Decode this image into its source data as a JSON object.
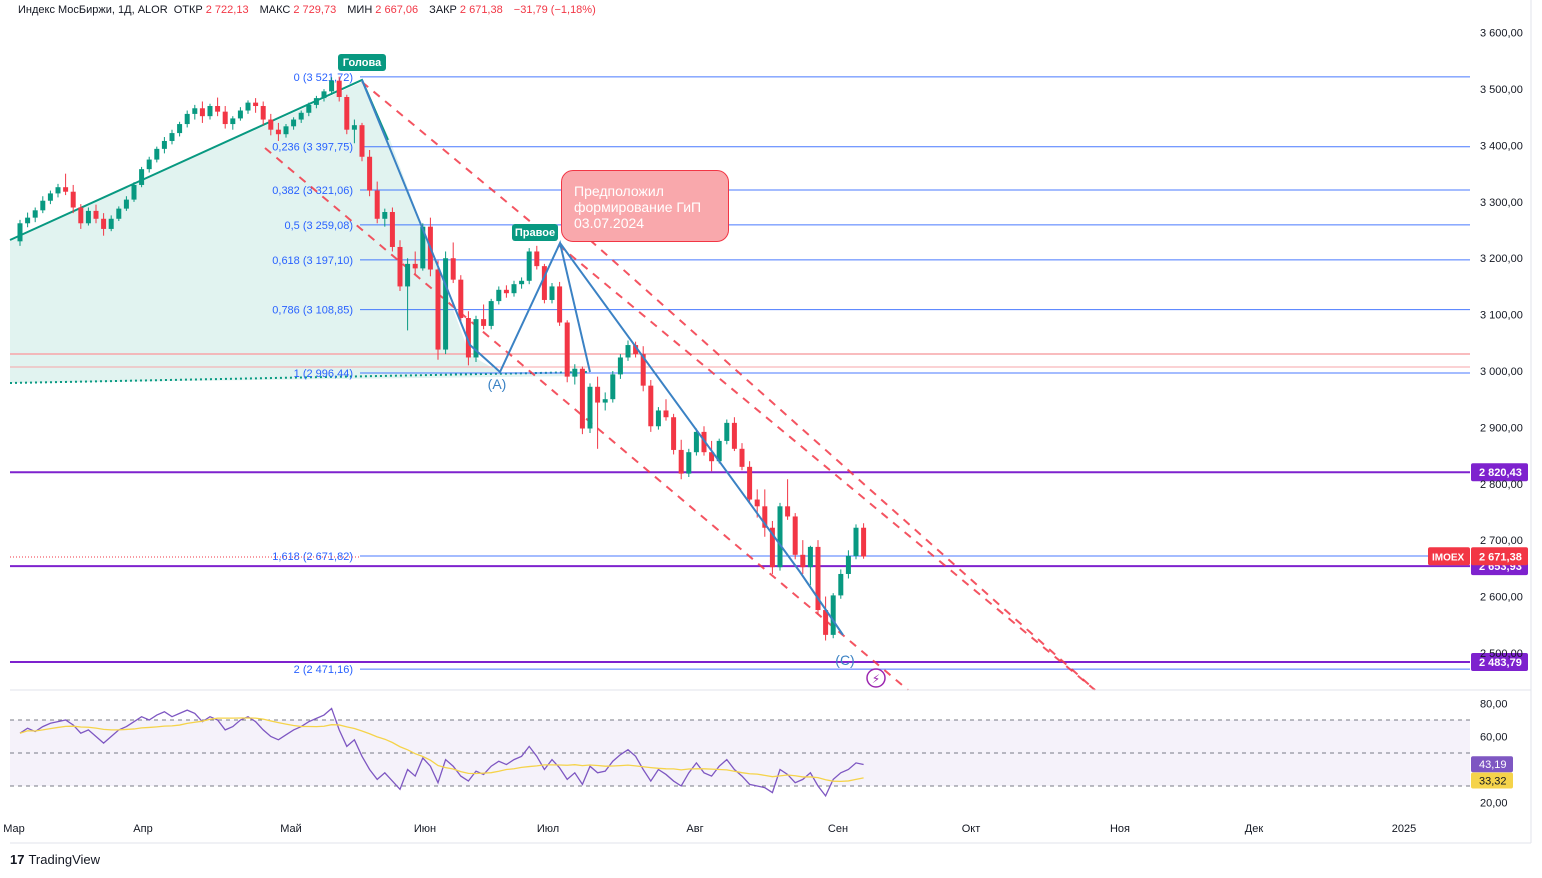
{
  "header": {
    "symbol": "Индекс МосБиржи, 1Д, ALOR",
    "open_label": "ОТКР",
    "open": "2 722,13",
    "high_label": "МАКС",
    "high": "2 729,73",
    "low_label": "МИН",
    "low": "2 667,06",
    "close_label": "ЗАКР",
    "close": "2 671,38",
    "change": "−31,79 (−1,18%)"
  },
  "annotation": {
    "line1": "Предположил",
    "line2": "формирование ГиП",
    "line3": "03.07.2024"
  },
  "footer": {
    "brand": "TradingView",
    "logo_glyph": "17"
  },
  "colors": {
    "bull": "#089981",
    "bear": "#f23645",
    "fib": "#2962ff",
    "purple": "#7e22ce",
    "channel": "#f23645",
    "wave": "#3b82c4",
    "rsi": "#7e57c2",
    "rsi_ma": "#f5d34a"
  },
  "chart_data": {
    "type": "candlestick",
    "symbol": "IMOEX",
    "timeframe": "1Д",
    "y_axis_ticks": [
      "3 600,00",
      "3 500,00",
      "3 400,00",
      "3 300,00",
      "3 200,00",
      "3 100,00",
      "3 000,00",
      "2 900,00",
      "2 800,00",
      "2 700,00",
      "2 600,00",
      "2 500,00"
    ],
    "ylim": [
      2420,
      3660
    ],
    "x_axis_ticks": [
      "Мар",
      "Апр",
      "Май",
      "Июн",
      "Июл",
      "Авг",
      "Сен",
      "Окт",
      "Ноя",
      "Дек",
      "2025"
    ],
    "fib_levels": [
      {
        "label": "0 (3 521,72)",
        "value": 3521.72
      },
      {
        "label": "0,236 (3 397,75)",
        "value": 3397.75
      },
      {
        "label": "0,382 (3 321,06)",
        "value": 3321.06
      },
      {
        "label": "0,5 (3 259,08)",
        "value": 3259.08
      },
      {
        "label": "0,618 (3 197,10)",
        "value": 3197.1
      },
      {
        "label": "0,786 (3 108,85)",
        "value": 3108.85
      },
      {
        "label": "1 (2 996,44)",
        "value": 2996.44
      },
      {
        "label": "1,618 (2 671,82)",
        "value": 2671.82
      },
      {
        "label": "2 (2 471,16)",
        "value": 2471.16
      }
    ],
    "horizontal_levels": [
      {
        "label": "2 820,43",
        "value": 2820.43
      },
      {
        "label": "2 653,93",
        "value": 2653.93
      },
      {
        "label": "2 483,79",
        "value": 2483.79
      }
    ],
    "price_tag": {
      "symbol": "IMOEX",
      "value": "2 671,38"
    },
    "wave_labels": [
      "Голова",
      "Правое",
      "(A)",
      "(C)"
    ],
    "candles": [
      [
        3230,
        3268,
        3222,
        3262
      ],
      [
        3262,
        3281,
        3255,
        3272
      ],
      [
        3272,
        3290,
        3264,
        3285
      ],
      [
        3285,
        3310,
        3280,
        3302
      ],
      [
        3302,
        3320,
        3296,
        3315
      ],
      [
        3315,
        3332,
        3308,
        3326
      ],
      [
        3326,
        3350,
        3312,
        3318
      ],
      [
        3318,
        3330,
        3280,
        3290
      ],
      [
        3290,
        3296,
        3252,
        3262
      ],
      [
        3262,
        3290,
        3258,
        3284
      ],
      [
        3284,
        3295,
        3262,
        3270
      ],
      [
        3270,
        3280,
        3240,
        3252
      ],
      [
        3252,
        3276,
        3248,
        3270
      ],
      [
        3270,
        3292,
        3266,
        3288
      ],
      [
        3288,
        3310,
        3284,
        3304
      ],
      [
        3304,
        3335,
        3300,
        3330
      ],
      [
        3330,
        3362,
        3326,
        3358
      ],
      [
        3358,
        3380,
        3352,
        3375
      ],
      [
        3375,
        3398,
        3370,
        3394
      ],
      [
        3394,
        3415,
        3386,
        3408
      ],
      [
        3408,
        3428,
        3402,
        3422
      ],
      [
        3422,
        3442,
        3416,
        3438
      ],
      [
        3438,
        3462,
        3432,
        3456
      ],
      [
        3456,
        3472,
        3446,
        3466
      ],
      [
        3466,
        3478,
        3440,
        3452
      ],
      [
        3452,
        3474,
        3446,
        3470
      ],
      [
        3470,
        3485,
        3452,
        3460
      ],
      [
        3460,
        3470,
        3430,
        3438
      ],
      [
        3438,
        3452,
        3428,
        3448
      ],
      [
        3448,
        3468,
        3444,
        3462
      ],
      [
        3462,
        3480,
        3456,
        3476
      ],
      [
        3476,
        3484,
        3458,
        3470
      ],
      [
        3470,
        3478,
        3436,
        3446
      ],
      [
        3446,
        3456,
        3418,
        3428
      ],
      [
        3428,
        3440,
        3408,
        3420
      ],
      [
        3420,
        3438,
        3414,
        3434
      ],
      [
        3434,
        3450,
        3428,
        3446
      ],
      [
        3446,
        3462,
        3440,
        3458
      ],
      [
        3458,
        3476,
        3452,
        3472
      ],
      [
        3472,
        3488,
        3466,
        3484
      ],
      [
        3484,
        3500,
        3478,
        3496
      ],
      [
        3496,
        3521,
        3490,
        3515
      ],
      [
        3515,
        3522,
        3478,
        3486
      ],
      [
        3486,
        3490,
        3420,
        3428
      ],
      [
        3428,
        3446,
        3404,
        3436
      ],
      [
        3436,
        3440,
        3372,
        3380
      ],
      [
        3380,
        3392,
        3310,
        3320
      ],
      [
        3320,
        3336,
        3262,
        3270
      ],
      [
        3270,
        3288,
        3256,
        3282
      ],
      [
        3282,
        3290,
        3212,
        3220
      ],
      [
        3220,
        3232,
        3142,
        3150
      ],
      [
        3150,
        3200,
        3072,
        3190
      ],
      [
        3190,
        3212,
        3172,
        3182
      ],
      [
        3182,
        3262,
        3178,
        3256
      ],
      [
        3256,
        3272,
        3168,
        3180
      ],
      [
        3180,
        3196,
        3020,
        3038
      ],
      [
        3038,
        3212,
        3030,
        3200
      ],
      [
        3200,
        3228,
        3156,
        3162
      ],
      [
        3162,
        3170,
        3086,
        3094
      ],
      [
        3094,
        3106,
        3010,
        3024
      ],
      [
        3024,
        3098,
        3016,
        3092
      ],
      [
        3092,
        3118,
        3074,
        3080
      ],
      [
        3080,
        3128,
        3074,
        3124
      ],
      [
        3124,
        3150,
        3118,
        3144
      ],
      [
        3144,
        3152,
        3130,
        3138
      ],
      [
        3138,
        3160,
        3132,
        3154
      ],
      [
        3154,
        3166,
        3146,
        3160
      ],
      [
        3160,
        3218,
        3154,
        3212
      ],
      [
        3212,
        3222,
        3180,
        3186
      ],
      [
        3186,
        3190,
        3120,
        3126
      ],
      [
        3126,
        3156,
        3120,
        3150
      ],
      [
        3150,
        3158,
        3080,
        3086
      ],
      [
        3086,
        3090,
        2980,
        2990
      ],
      [
        2990,
        3012,
        2976,
        3004
      ],
      [
        3004,
        3008,
        2888,
        2898
      ],
      [
        2898,
        2978,
        2890,
        2972
      ],
      [
        2972,
        2990,
        2862,
        2944
      ],
      [
        2944,
        2962,
        2930,
        2950
      ],
      [
        2950,
        3000,
        2944,
        2994
      ],
      [
        2994,
        3030,
        2986,
        3024
      ],
      [
        3024,
        3054,
        3018,
        3046
      ],
      [
        3046,
        3052,
        3024,
        3030
      ],
      [
        3030,
        3044,
        2964,
        2974
      ],
      [
        2974,
        2984,
        2892,
        2902
      ],
      [
        2902,
        2936,
        2896,
        2930
      ],
      [
        2930,
        2950,
        2912,
        2918
      ],
      [
        2918,
        2924,
        2852,
        2860
      ],
      [
        2860,
        2878,
        2808,
        2818
      ],
      [
        2818,
        2862,
        2812,
        2856
      ],
      [
        2856,
        2898,
        2850,
        2892
      ],
      [
        2892,
        2902,
        2850,
        2856
      ],
      [
        2856,
        2876,
        2822,
        2840
      ],
      [
        2840,
        2880,
        2836,
        2876
      ],
      [
        2876,
        2914,
        2870,
        2908
      ],
      [
        2908,
        2918,
        2858,
        2862
      ],
      [
        2862,
        2872,
        2824,
        2830
      ],
      [
        2830,
        2840,
        2766,
        2772
      ],
      [
        2772,
        2790,
        2740,
        2760
      ],
      [
        2760,
        2790,
        2706,
        2722
      ],
      [
        2722,
        2734,
        2640,
        2652
      ],
      [
        2652,
        2766,
        2646,
        2760
      ],
      [
        2760,
        2808,
        2736,
        2742
      ],
      [
        2742,
        2748,
        2666,
        2674
      ],
      [
        2674,
        2700,
        2640,
        2652
      ],
      [
        2652,
        2690,
        2620,
        2688
      ],
      [
        2688,
        2700,
        2568,
        2576
      ],
      [
        2576,
        2600,
        2522,
        2532
      ],
      [
        2532,
        2606,
        2526,
        2602
      ],
      [
        2602,
        2648,
        2596,
        2640
      ],
      [
        2640,
        2682,
        2632,
        2672
      ],
      [
        2672,
        2728,
        2666,
        2722
      ],
      [
        2722,
        2730,
        2667,
        2671
      ]
    ],
    "rsi": {
      "ticks": [
        "80,00",
        "60,00",
        "20,00"
      ],
      "ylim": [
        10,
        90
      ],
      "levels": [
        70,
        50,
        30
      ],
      "last_value": "43,19",
      "ma_last_value": "33,32",
      "values": [
        62,
        65,
        63,
        66,
        68,
        69,
        70,
        67,
        62,
        64,
        60,
        56,
        60,
        64,
        66,
        69,
        72,
        70,
        73,
        75,
        72,
        74,
        76,
        74,
        69,
        72,
        70,
        64,
        66,
        70,
        72,
        69,
        64,
        60,
        58,
        61,
        64,
        66,
        69,
        71,
        73,
        77,
        64,
        54,
        58,
        48,
        40,
        34,
        38,
        33,
        28,
        40,
        36,
        47,
        42,
        32,
        46,
        42,
        36,
        33,
        39,
        37,
        42,
        45,
        43,
        46,
        48,
        54,
        48,
        40,
        46,
        41,
        34,
        38,
        31,
        42,
        38,
        39,
        45,
        49,
        52,
        48,
        40,
        33,
        40,
        37,
        33,
        30,
        38,
        44,
        38,
        36,
        42,
        46,
        40,
        36,
        31,
        30,
        29,
        26,
        40,
        37,
        32,
        34,
        38,
        30,
        24,
        34,
        38,
        40,
        44,
        43
      ]
    }
  }
}
